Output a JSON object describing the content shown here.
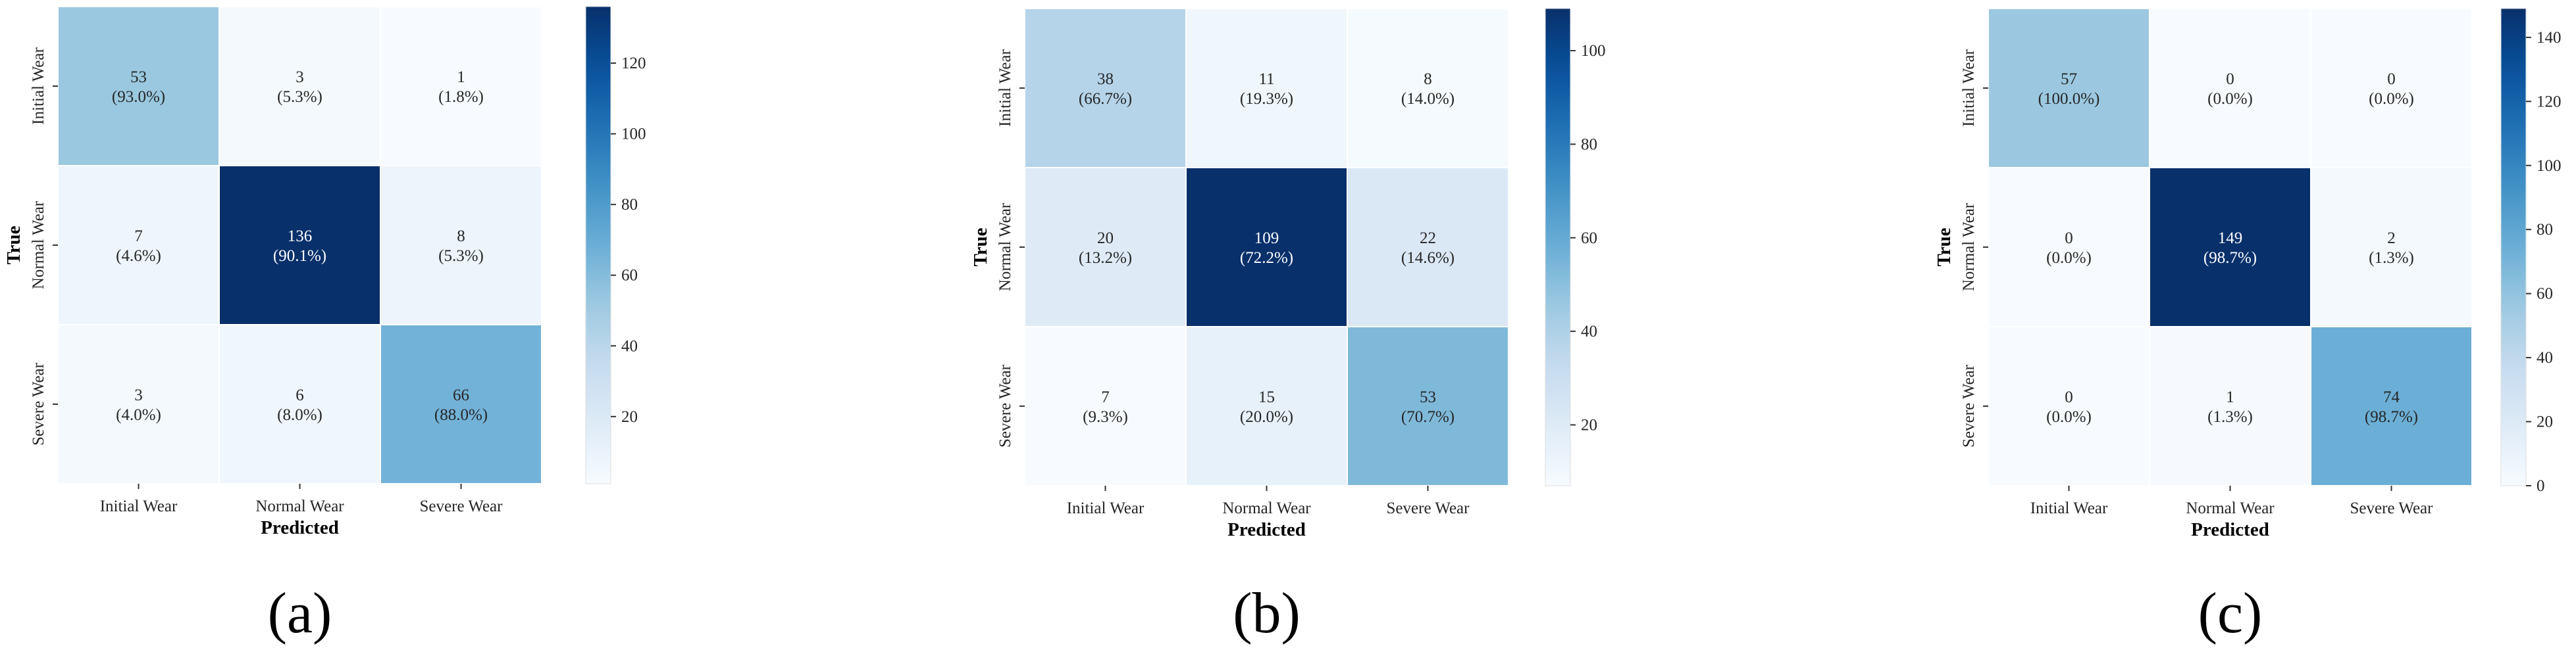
{
  "chart_data": [
    {
      "type": "heatmap",
      "caption": "(a)",
      "xlabel": "Predicted",
      "ylabel": "True",
      "x_categories": [
        "Initial Wear",
        "Normal Wear",
        "Severe Wear"
      ],
      "y_categories": [
        "Initial Wear",
        "Normal Wear",
        "Severe Wear"
      ],
      "values": [
        [
          53,
          3,
          1
        ],
        [
          7,
          136,
          8
        ],
        [
          3,
          6,
          66
        ]
      ],
      "percentages": [
        [
          "93.0%",
          "5.3%",
          "1.8%"
        ],
        [
          "4.6%",
          "90.1%",
          "5.3%"
        ],
        [
          "4.0%",
          "8.0%",
          "88.0%"
        ]
      ],
      "colorbar": {
        "min": 1,
        "max": 136,
        "ticks": [
          20,
          40,
          60,
          80,
          100,
          120
        ]
      }
    },
    {
      "type": "heatmap",
      "caption": "(b)",
      "xlabel": "Predicted",
      "ylabel": "True",
      "x_categories": [
        "Initial Wear",
        "Normal Wear",
        "Severe Wear"
      ],
      "y_categories": [
        "Initial Wear",
        "Normal Wear",
        "Severe Wear"
      ],
      "values": [
        [
          38,
          11,
          8
        ],
        [
          20,
          109,
          22
        ],
        [
          7,
          15,
          53
        ]
      ],
      "percentages": [
        [
          "66.7%",
          "19.3%",
          "14.0%"
        ],
        [
          "13.2%",
          "72.2%",
          "14.6%"
        ],
        [
          "9.3%",
          "20.0%",
          "70.7%"
        ]
      ],
      "colorbar": {
        "min": 7,
        "max": 109,
        "ticks": [
          20,
          40,
          60,
          80,
          100
        ]
      }
    },
    {
      "type": "heatmap",
      "caption": "(c)",
      "xlabel": "Predicted",
      "ylabel": "True",
      "x_categories": [
        "Initial Wear",
        "Normal Wear",
        "Severe Wear"
      ],
      "y_categories": [
        "Initial Wear",
        "Normal Wear",
        "Severe Wear"
      ],
      "values": [
        [
          57,
          0,
          0
        ],
        [
          0,
          149,
          2
        ],
        [
          0,
          1,
          74
        ]
      ],
      "percentages": [
        [
          "100.0%",
          "0.0%",
          "0.0%"
        ],
        [
          "0.0%",
          "98.7%",
          "1.3%"
        ],
        [
          "0.0%",
          "1.3%",
          "98.7%"
        ]
      ],
      "colorbar": {
        "min": 0,
        "max": 149,
        "ticks": [
          0,
          20,
          40,
          60,
          80,
          100,
          120,
          140
        ]
      }
    }
  ],
  "colormap": "Blues"
}
